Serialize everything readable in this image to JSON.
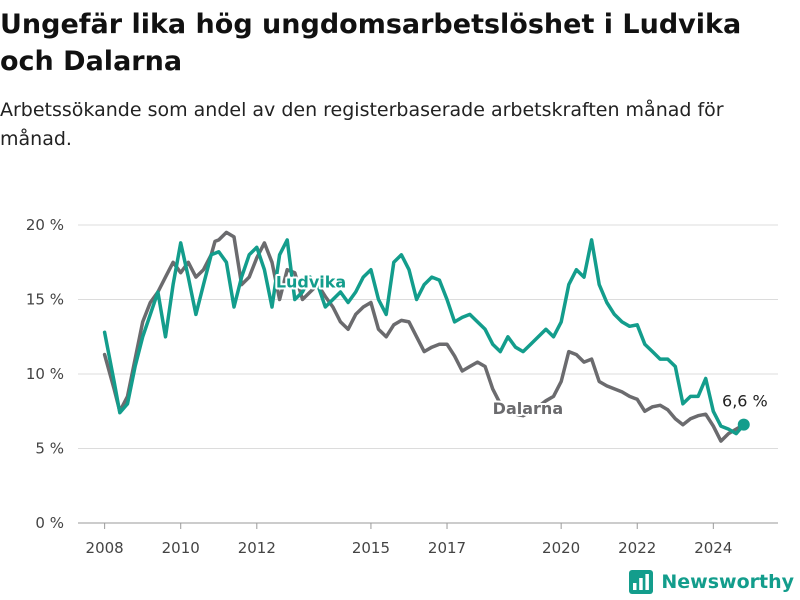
{
  "header": {
    "title": "Ungefär lika hög ungdomsarbetslöshet i Ludvika och Dalarna",
    "subtitle": "Arbetssökande som andel av den registerbaserade arbetskraften månad för månad."
  },
  "brand": {
    "name": "Newsworthy",
    "icon": "bar-chart-logo-icon",
    "color": "#139d8c"
  },
  "chart_data": {
    "type": "line",
    "x_unit": "year",
    "ylim": [
      0,
      20
    ],
    "yticks": [
      0,
      5,
      10,
      15,
      20
    ],
    "ytick_labels": [
      "0 %",
      "5 %",
      "10 %",
      "15 %",
      "20 %"
    ],
    "xticks": [
      2008,
      2010,
      2012,
      2015,
      2017,
      2020,
      2022,
      2024
    ],
    "xtick_labels": [
      "2008",
      "2010",
      "2012",
      "2015",
      "2017",
      "2020",
      "2022",
      "2024"
    ],
    "grid": true,
    "end_label": "6,6 %",
    "series": [
      {
        "name": "Dalarna",
        "color": "#6b6b6e",
        "x": [
          2008.0,
          2008.25,
          2008.4,
          2008.6,
          2008.8,
          2009.0,
          2009.2,
          2009.4,
          2009.6,
          2009.8,
          2010.0,
          2010.2,
          2010.4,
          2010.6,
          2010.8,
          2010.9,
          2011.0,
          2011.2,
          2011.4,
          2011.6,
          2011.8,
          2012.0,
          2012.2,
          2012.4,
          2012.6,
          2012.8,
          2013.0,
          2013.2,
          2013.4,
          2013.6,
          2013.8,
          2014.0,
          2014.2,
          2014.4,
          2014.6,
          2014.8,
          2015.0,
          2015.2,
          2015.4,
          2015.6,
          2015.8,
          2016.0,
          2016.2,
          2016.4,
          2016.6,
          2016.8,
          2017.0,
          2017.2,
          2017.4,
          2017.6,
          2017.8,
          2018.0,
          2018.2,
          2018.4,
          2018.6,
          2018.8,
          2019.0,
          2019.2,
          2019.4,
          2019.6,
          2019.8,
          2020.0,
          2020.2,
          2020.4,
          2020.6,
          2020.8,
          2021.0,
          2021.2,
          2021.4,
          2021.6,
          2021.8,
          2022.0,
          2022.2,
          2022.4,
          2022.6,
          2022.8,
          2023.0,
          2023.2,
          2023.4,
          2023.6,
          2023.8,
          2024.0,
          2024.2,
          2024.4,
          2024.6,
          2024.8
        ],
        "values": [
          11.3,
          9.0,
          7.5,
          8.5,
          11.0,
          13.5,
          14.8,
          15.5,
          16.5,
          17.5,
          16.8,
          17.5,
          16.5,
          17.0,
          18.0,
          18.9,
          19.0,
          19.5,
          19.2,
          16.0,
          16.5,
          17.8,
          18.8,
          17.5,
          15.0,
          17.0,
          16.8,
          15.0,
          15.5,
          16.0,
          15.2,
          14.5,
          13.5,
          13.0,
          14.0,
          14.5,
          14.8,
          13.0,
          12.5,
          13.3,
          13.6,
          13.5,
          12.5,
          11.5,
          11.8,
          12.0,
          12.0,
          11.2,
          10.2,
          10.5,
          10.8,
          10.5,
          9.0,
          8.0,
          7.5,
          7.3,
          7.2,
          7.5,
          7.8,
          8.2,
          8.5,
          9.5,
          11.5,
          11.3,
          10.8,
          11.0,
          9.5,
          9.2,
          9.0,
          8.8,
          8.5,
          8.3,
          7.5,
          7.8,
          7.9,
          7.6,
          7.0,
          6.6,
          7.0,
          7.2,
          7.3,
          6.5,
          5.5,
          6.0,
          6.3,
          6.6
        ]
      },
      {
        "name": "Ludvika",
        "color": "#139d8c",
        "x": [
          2008.0,
          2008.25,
          2008.4,
          2008.6,
          2008.8,
          2009.0,
          2009.2,
          2009.4,
          2009.6,
          2009.8,
          2010.0,
          2010.2,
          2010.4,
          2010.6,
          2010.8,
          2011.0,
          2011.2,
          2011.4,
          2011.6,
          2011.8,
          2012.0,
          2012.2,
          2012.4,
          2012.6,
          2012.8,
          2013.0,
          2013.2,
          2013.4,
          2013.6,
          2013.8,
          2014.0,
          2014.2,
          2014.4,
          2014.6,
          2014.8,
          2015.0,
          2015.2,
          2015.4,
          2015.6,
          2015.8,
          2016.0,
          2016.2,
          2016.4,
          2016.6,
          2016.8,
          2017.0,
          2017.2,
          2017.4,
          2017.6,
          2017.8,
          2018.0,
          2018.2,
          2018.4,
          2018.6,
          2018.8,
          2019.0,
          2019.2,
          2019.4,
          2019.6,
          2019.8,
          2020.0,
          2020.2,
          2020.4,
          2020.6,
          2020.8,
          2021.0,
          2021.2,
          2021.4,
          2021.6,
          2021.8,
          2022.0,
          2022.2,
          2022.4,
          2022.6,
          2022.8,
          2023.0,
          2023.2,
          2023.4,
          2023.6,
          2023.8,
          2024.0,
          2024.2,
          2024.4,
          2024.6,
          2024.8
        ],
        "values": [
          12.8,
          9.5,
          7.4,
          8.0,
          10.5,
          12.5,
          14.0,
          15.5,
          12.5,
          16.0,
          18.8,
          16.5,
          14.0,
          16.0,
          18.0,
          18.2,
          17.5,
          14.5,
          16.5,
          18.0,
          18.5,
          17.0,
          14.5,
          18.0,
          19.0,
          15.0,
          15.5,
          16.5,
          16.0,
          14.5,
          15.0,
          15.5,
          14.8,
          15.5,
          16.5,
          17.0,
          15.0,
          14.0,
          17.5,
          18.0,
          17.0,
          15.0,
          16.0,
          16.5,
          16.3,
          15.0,
          13.5,
          13.8,
          14.0,
          13.5,
          13.0,
          12.0,
          11.5,
          12.5,
          11.8,
          11.5,
          12.0,
          12.5,
          13.0,
          12.5,
          13.5,
          16.0,
          17.0,
          16.5,
          19.0,
          16.0,
          14.8,
          14.0,
          13.5,
          13.2,
          13.3,
          12.0,
          11.5,
          11.0,
          11.0,
          10.5,
          8.0,
          8.5,
          8.5,
          9.7,
          7.5,
          6.5,
          6.3,
          6.0,
          6.6
        ]
      }
    ]
  }
}
